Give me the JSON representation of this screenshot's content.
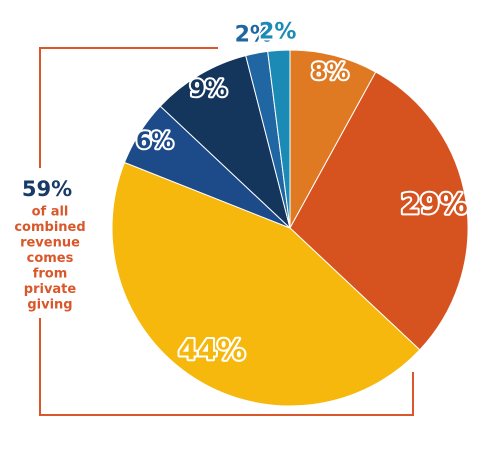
{
  "chart_data": {
    "type": "pie",
    "categories": [
      null,
      null,
      null,
      null,
      null,
      null,
      null
    ],
    "values": [
      8,
      29,
      44,
      6,
      9,
      2,
      2
    ],
    "value_labels": [
      "8%",
      "29%",
      "44%",
      "6%",
      "9%",
      "2%",
      "2%"
    ],
    "colors": [
      "#e07a22",
      "#d6521f",
      "#f6b80c",
      "#1d4b8a",
      "#14355c",
      "#1f66a2",
      "#1b8bb6"
    ],
    "annotation": {
      "headline": "59%",
      "lines": [
        "of all",
        "combined",
        "revenue",
        "comes",
        "from",
        "private",
        "giving"
      ]
    }
  }
}
